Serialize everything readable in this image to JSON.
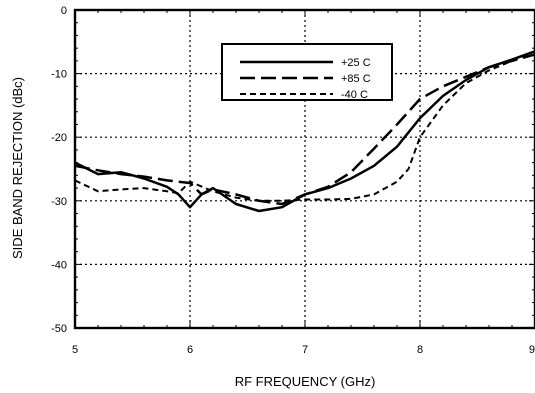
{
  "chart_data": {
    "type": "line",
    "xlabel": "RF FREQUENCY (GHz)",
    "ylabel": "SIDE BAND REJECTION (dBc)",
    "xlim": [
      5,
      9
    ],
    "ylim": [
      -50,
      0
    ],
    "x_ticks": [
      5,
      6,
      7,
      8,
      9
    ],
    "x_tick_labels": [
      "5",
      "6",
      "7",
      "8",
      "9"
    ],
    "y_ticks": [
      0,
      -10,
      -20,
      -30,
      -40,
      -50
    ],
    "y_tick_labels": [
      "0",
      "-10",
      "-20",
      "-30",
      "-40",
      "-50"
    ],
    "grid": true,
    "grid_style": "dotted",
    "legend_position": "top-right",
    "series": [
      {
        "name": "+25 C",
        "style": "solid",
        "x": [
          5.0,
          5.2,
          5.4,
          5.6,
          5.8,
          5.9,
          6.0,
          6.1,
          6.2,
          6.4,
          6.6,
          6.8,
          7.0,
          7.2,
          7.4,
          7.6,
          7.8,
          8.0,
          8.2,
          8.4,
          8.6,
          8.8,
          9.0
        ],
        "y": [
          -24.0,
          -25.8,
          -25.5,
          -26.5,
          -27.8,
          -29.0,
          -31.0,
          -29.0,
          -28.0,
          -30.5,
          -31.6,
          -31.0,
          -29.0,
          -28.0,
          -26.5,
          -24.5,
          -21.5,
          -17.0,
          -13.5,
          -11.0,
          -9.0,
          -7.8,
          -6.5
        ]
      },
      {
        "name": "+85 C",
        "style": "dashed",
        "x": [
          5.0,
          5.2,
          5.4,
          5.6,
          5.8,
          6.0,
          6.1,
          6.2,
          6.4,
          6.6,
          6.8,
          7.0,
          7.2,
          7.4,
          7.6,
          7.8,
          8.0,
          8.2,
          8.4,
          8.6,
          8.8,
          9.0
        ],
        "y": [
          -24.5,
          -25.2,
          -25.8,
          -26.2,
          -26.8,
          -27.2,
          -29.0,
          -28.2,
          -29.0,
          -30.0,
          -30.5,
          -29.0,
          -27.8,
          -25.5,
          -21.8,
          -18.0,
          -14.0,
          -12.0,
          -10.5,
          -9.0,
          -8.0,
          -7.0
        ]
      },
      {
        "name": "-40 C",
        "style": "short-dashed",
        "x": [
          5.0,
          5.2,
          5.4,
          5.6,
          5.8,
          5.9,
          6.0,
          6.2,
          6.4,
          6.6,
          6.8,
          7.0,
          7.2,
          7.4,
          7.6,
          7.8,
          7.9,
          8.0,
          8.2,
          8.4,
          8.6,
          8.8,
          9.0
        ],
        "y": [
          -26.8,
          -28.5,
          -28.2,
          -28.0,
          -28.5,
          -28.8,
          -27.0,
          -28.5,
          -29.5,
          -30.0,
          -30.0,
          -29.8,
          -29.8,
          -29.7,
          -29.0,
          -27.0,
          -25.0,
          -20.0,
          -15.0,
          -11.5,
          -9.5,
          -8.0,
          -6.5
        ]
      }
    ]
  }
}
